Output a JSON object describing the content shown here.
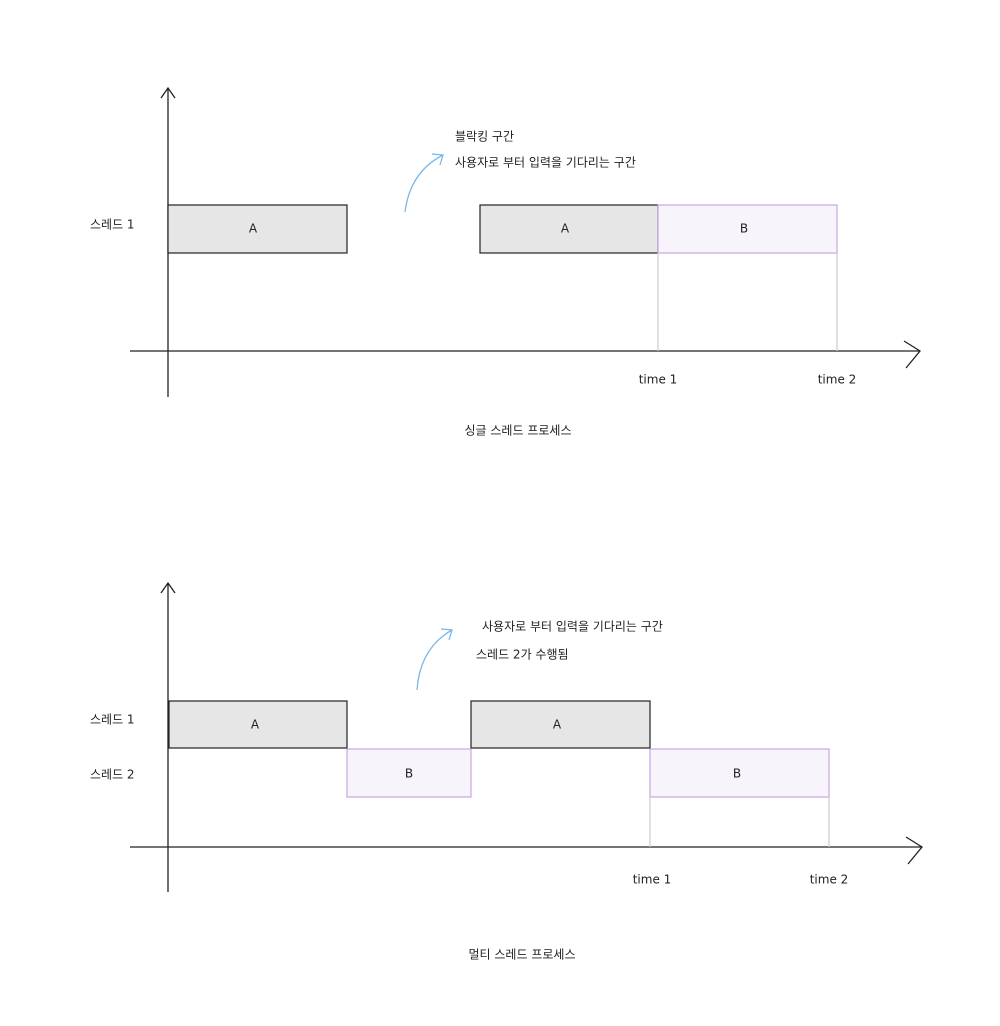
{
  "single": {
    "caption": "싱글 스레드 프로세스",
    "rows": [
      "스레드 1"
    ],
    "annotation": [
      "블락킹 구간",
      "사용자로 부터 입력을 기다리는 구간"
    ],
    "blocks": [
      "A",
      "A",
      "B"
    ],
    "times": [
      "time 1",
      "time 2"
    ]
  },
  "multi": {
    "caption": "멀티 스레드 프로세스",
    "rows": [
      "스레드 1",
      "스레드 2"
    ],
    "annotation": [
      "사용자로 부터 입력을 기다리는 구간",
      "스레드 2가 수행됨"
    ],
    "blocks": [
      "A",
      "A",
      "B",
      "B"
    ],
    "times": [
      "time 1",
      "time 2"
    ]
  }
}
